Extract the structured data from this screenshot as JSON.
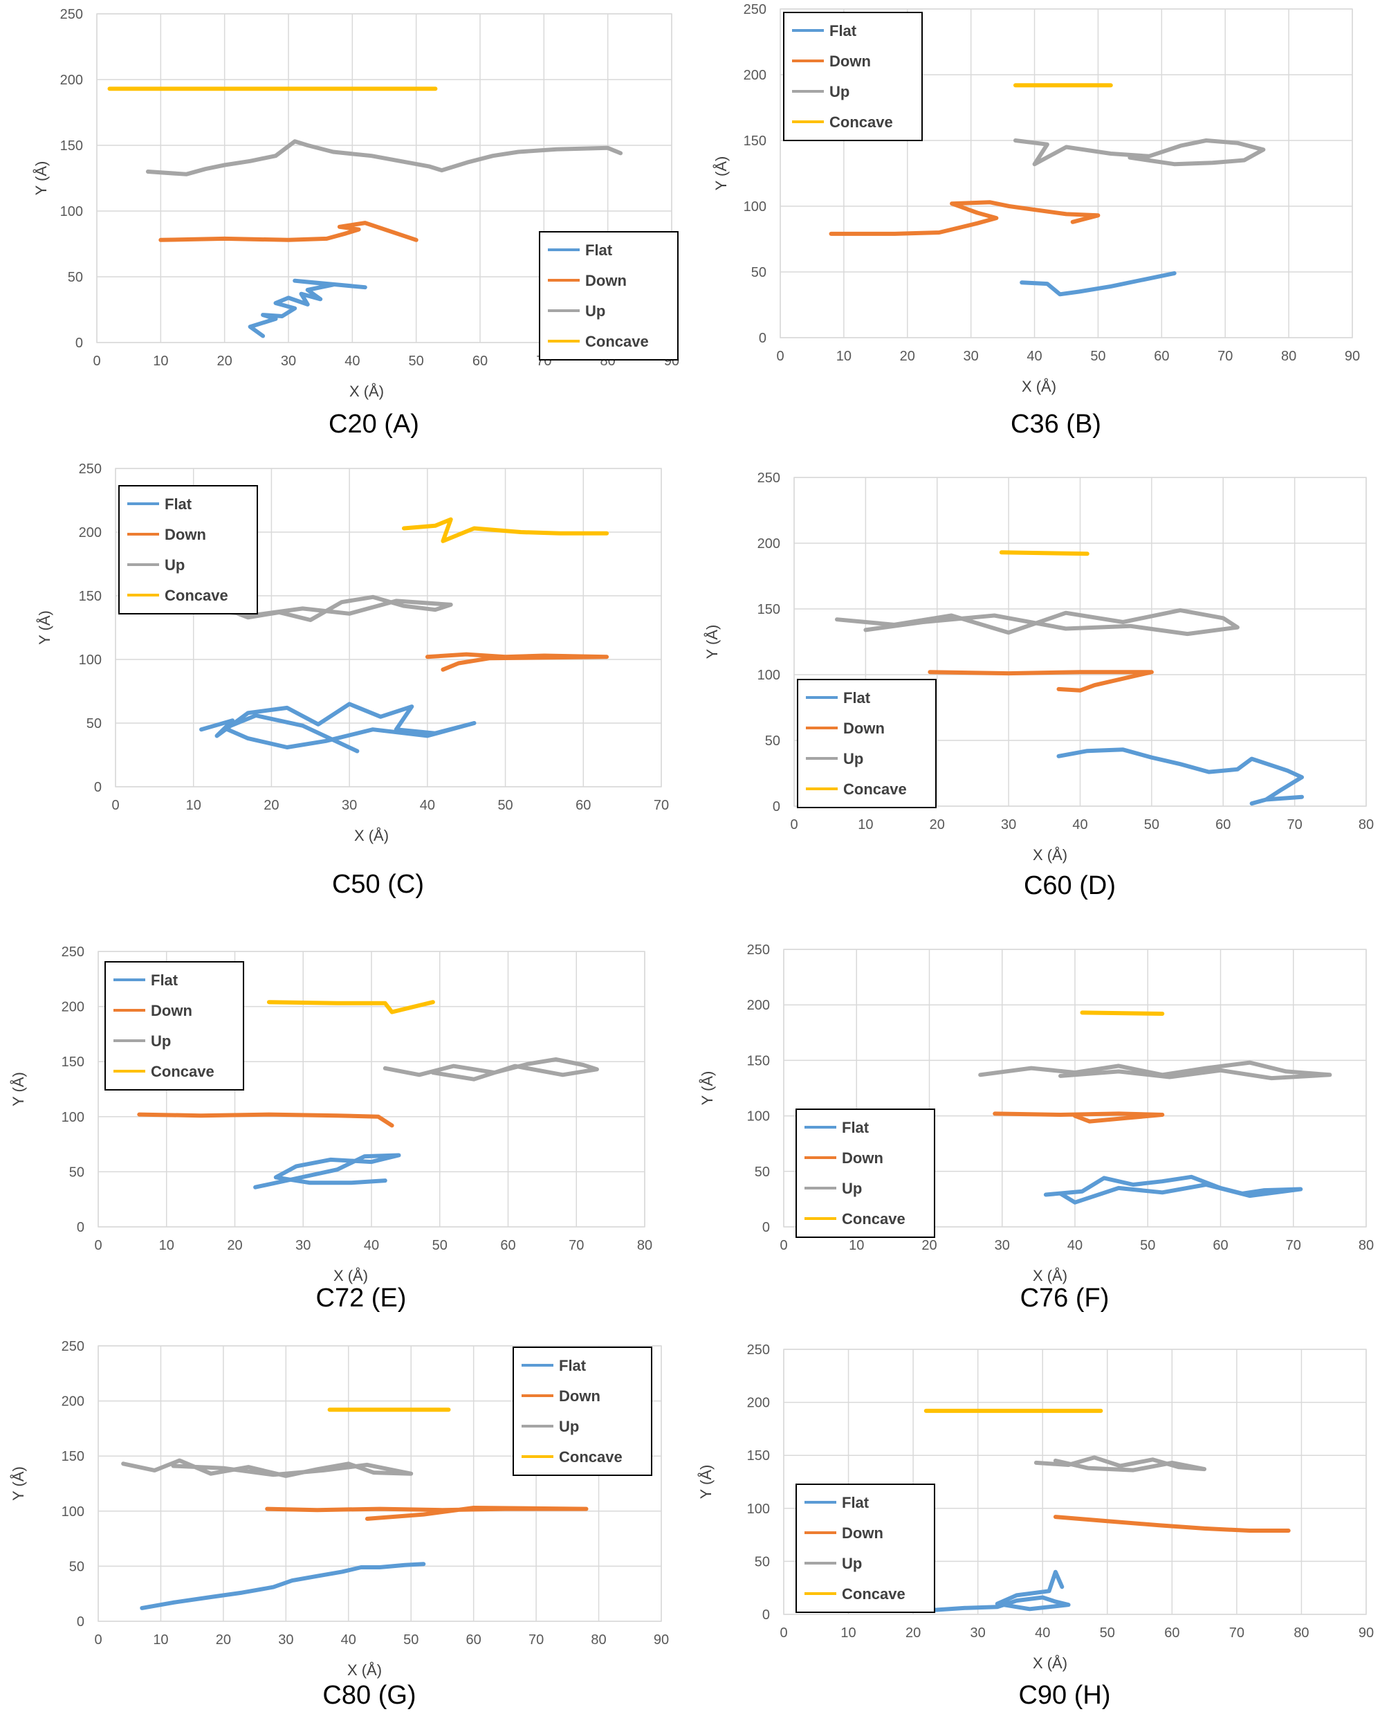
{
  "colors": {
    "Flat": "#5B9BD5",
    "Down": "#ED7D31",
    "Up": "#A5A5A5",
    "Concave": "#FFC000",
    "grid": "#d9d9d9",
    "tick": "#595959"
  },
  "chart_data": [
    {
      "type": "line",
      "caption": "C20 (A)",
      "xlabel": "X (Å)",
      "ylabel": "Y (Å)",
      "xlim": [
        0,
        90
      ],
      "ylim": [
        0,
        250
      ],
      "xticks": [
        0,
        10,
        20,
        30,
        40,
        50,
        60,
        70,
        80,
        90
      ],
      "yticks": [
        0,
        50,
        100,
        150,
        200,
        250
      ],
      "grid": true,
      "legend": "bottom-right",
      "series": [
        {
          "name": "Flat",
          "x": [
            26,
            24,
            28,
            26,
            29,
            31,
            28,
            30,
            33,
            32,
            35,
            33,
            37,
            31,
            42
          ],
          "y": [
            5,
            12,
            18,
            21,
            20,
            26,
            30,
            34,
            29,
            37,
            33,
            40,
            44,
            47,
            42
          ]
        },
        {
          "name": "Down",
          "x": [
            10,
            20,
            30,
            36,
            39,
            41,
            38,
            42,
            50
          ],
          "y": [
            78,
            79,
            78,
            79,
            83,
            86,
            88,
            91,
            78
          ]
        },
        {
          "name": "Up",
          "x": [
            8,
            14,
            17,
            20,
            24,
            28,
            31,
            33,
            37,
            43,
            52,
            54,
            58,
            62,
            66,
            72,
            80,
            82
          ],
          "y": [
            130,
            128,
            132,
            135,
            138,
            142,
            153,
            150,
            145,
            142,
            134,
            131,
            137,
            142,
            145,
            147,
            148,
            144
          ]
        },
        {
          "name": "Concave",
          "x": [
            2,
            53
          ],
          "y": [
            193,
            193
          ]
        }
      ]
    },
    {
      "type": "line",
      "caption": "C36 (B)",
      "xlabel": "X (Å)",
      "ylabel": "Y (Å)",
      "xlim": [
        0,
        90
      ],
      "ylim": [
        0,
        250
      ],
      "xticks": [
        0,
        10,
        20,
        30,
        40,
        50,
        60,
        70,
        80,
        90
      ],
      "yticks": [
        0,
        50,
        100,
        150,
        200,
        250
      ],
      "grid": true,
      "legend": "top-left",
      "series": [
        {
          "name": "Flat",
          "x": [
            38,
            42,
            44,
            47,
            52,
            57,
            62
          ],
          "y": [
            42,
            41,
            33,
            35,
            39,
            44,
            49
          ]
        },
        {
          "name": "Down",
          "x": [
            8,
            18,
            25,
            31,
            34,
            31,
            27,
            33,
            36,
            45,
            50,
            46
          ],
          "y": [
            79,
            79,
            80,
            87,
            91,
            95,
            102,
            103,
            100,
            94,
            93,
            88
          ]
        },
        {
          "name": "Up",
          "x": [
            37,
            42,
            40,
            45,
            52,
            58,
            63,
            67,
            72,
            76,
            73,
            68,
            62,
            55
          ],
          "y": [
            150,
            147,
            132,
            145,
            140,
            138,
            146,
            150,
            148,
            143,
            135,
            133,
            132,
            137
          ]
        },
        {
          "name": "Concave",
          "x": [
            37,
            52
          ],
          "y": [
            192,
            192
          ]
        }
      ]
    },
    {
      "type": "line",
      "caption": "C50 (C)",
      "xlabel": "X (Å)",
      "ylabel": "Y (Å)",
      "xlim": [
        0,
        70
      ],
      "ylim": [
        0,
        250
      ],
      "xticks": [
        0,
        10,
        20,
        30,
        40,
        50,
        60,
        70
      ],
      "yticks": [
        0,
        50,
        100,
        150,
        200,
        250
      ],
      "grid": true,
      "legend": "top-left",
      "series": [
        {
          "name": "Flat",
          "x": [
            11,
            15,
            13,
            17,
            22,
            26,
            30,
            34,
            38,
            36,
            41,
            46,
            40,
            33,
            27,
            22,
            17,
            14,
            18,
            24,
            31
          ],
          "y": [
            45,
            52,
            40,
            58,
            62,
            49,
            65,
            55,
            63,
            45,
            42,
            50,
            40,
            45,
            36,
            31,
            38,
            46,
            56,
            48,
            28
          ]
        },
        {
          "name": "Down",
          "x": [
            40,
            45,
            50,
            55,
            63,
            48,
            44,
            42
          ],
          "y": [
            102,
            104,
            102,
            103,
            102,
            101,
            97,
            92
          ]
        },
        {
          "name": "Up",
          "x": [
            10,
            14,
            17,
            21,
            25,
            29,
            33,
            37,
            41,
            43,
            36,
            30,
            24,
            18,
            13
          ],
          "y": [
            148,
            140,
            133,
            137,
            131,
            145,
            149,
            142,
            139,
            143,
            146,
            136,
            140,
            135,
            138
          ]
        },
        {
          "name": "Concave",
          "x": [
            37,
            41,
            43,
            42,
            46,
            52,
            57,
            63
          ],
          "y": [
            203,
            205,
            210,
            193,
            203,
            200,
            199,
            199
          ]
        }
      ]
    },
    {
      "type": "line",
      "caption": "C60 (D)",
      "xlabel": "X (Å)",
      "ylabel": "Y (Å)",
      "xlim": [
        0,
        80
      ],
      "ylim": [
        0,
        250
      ],
      "xticks": [
        0,
        10,
        20,
        30,
        40,
        50,
        60,
        70,
        80
      ],
      "yticks": [
        0,
        50,
        100,
        150,
        200,
        250
      ],
      "grid": true,
      "legend": "bottom-left",
      "series": [
        {
          "name": "Flat",
          "x": [
            37,
            41,
            46,
            50,
            54,
            58,
            62,
            64,
            69,
            71,
            68,
            66,
            64,
            66,
            71
          ],
          "y": [
            38,
            42,
            43,
            37,
            32,
            26,
            28,
            36,
            27,
            22,
            12,
            5,
            2,
            5,
            7
          ]
        },
        {
          "name": "Down",
          "x": [
            19,
            30,
            40,
            50,
            46,
            42,
            40,
            37
          ],
          "y": [
            102,
            101,
            102,
            102,
            97,
            92,
            88,
            89
          ]
        },
        {
          "name": "Up",
          "x": [
            6,
            14,
            22,
            30,
            38,
            46,
            54,
            60,
            62,
            55,
            47,
            38,
            28,
            18,
            10
          ],
          "y": [
            142,
            138,
            145,
            132,
            147,
            140,
            149,
            143,
            136,
            131,
            137,
            135,
            145,
            140,
            134
          ]
        },
        {
          "name": "Concave",
          "x": [
            29,
            41
          ],
          "y": [
            193,
            192
          ]
        }
      ]
    },
    {
      "type": "line",
      "caption": "C72 (E)",
      "xlabel": "X (Å)",
      "ylabel": "Y (Å)",
      "xlim": [
        0,
        80
      ],
      "ylim": [
        0,
        250
      ],
      "xticks": [
        0,
        10,
        20,
        30,
        40,
        50,
        60,
        70,
        80
      ],
      "yticks": [
        0,
        50,
        100,
        150,
        200,
        250
      ],
      "grid": true,
      "legend": "top-left",
      "series": [
        {
          "name": "Flat",
          "x": [
            23,
            29,
            35,
            39,
            44,
            40,
            34,
            29,
            26,
            31,
            37,
            42
          ],
          "y": [
            36,
            44,
            52,
            64,
            65,
            59,
            61,
            55,
            45,
            40,
            40,
            42
          ]
        },
        {
          "name": "Down",
          "x": [
            6,
            15,
            25,
            35,
            41,
            43
          ],
          "y": [
            102,
            101,
            102,
            101,
            100,
            92
          ]
        },
        {
          "name": "Up",
          "x": [
            42,
            47,
            52,
            58,
            63,
            67,
            71,
            73,
            68,
            61,
            55,
            49
          ],
          "y": [
            144,
            138,
            146,
            140,
            148,
            152,
            147,
            143,
            138,
            146,
            134,
            140
          ]
        },
        {
          "name": "Concave",
          "x": [
            25,
            35,
            42,
            43,
            49
          ],
          "y": [
            204,
            203,
            203,
            195,
            204
          ]
        }
      ]
    },
    {
      "type": "line",
      "caption": "C76  (F)",
      "xlabel": "X (Å)",
      "ylabel": "Y (Å)",
      "xlim": [
        0,
        80
      ],
      "ylim": [
        0,
        250
      ],
      "xticks": [
        0,
        10,
        20,
        30,
        40,
        50,
        60,
        70,
        80
      ],
      "yticks": [
        0,
        50,
        100,
        150,
        200,
        250
      ],
      "grid": true,
      "legend": "bottom-left",
      "series": [
        {
          "name": "Flat",
          "x": [
            36,
            41,
            44,
            48,
            52,
            56,
            60,
            63,
            66,
            71,
            64,
            58,
            52,
            46,
            40,
            38
          ],
          "y": [
            29,
            32,
            44,
            38,
            41,
            45,
            35,
            30,
            33,
            34,
            28,
            38,
            31,
            35,
            22,
            30
          ]
        },
        {
          "name": "Down",
          "x": [
            29,
            38,
            46,
            52,
            47,
            42,
            40
          ],
          "y": [
            102,
            101,
            102,
            101,
            98,
            95,
            100
          ]
        },
        {
          "name": "Up",
          "x": [
            27,
            34,
            40,
            46,
            52,
            58,
            64,
            69,
            75,
            67,
            60,
            53,
            46,
            38
          ],
          "y": [
            137,
            143,
            139,
            145,
            137,
            143,
            148,
            140,
            137,
            134,
            141,
            135,
            140,
            136
          ]
        },
        {
          "name": "Concave",
          "x": [
            41,
            52
          ],
          "y": [
            193,
            192
          ]
        }
      ]
    },
    {
      "type": "line",
      "caption": "C80 (G)",
      "xlabel": "X (Å)",
      "ylabel": "Y (Å)",
      "xlim": [
        0,
        90
      ],
      "ylim": [
        0,
        250
      ],
      "xticks": [
        0,
        10,
        20,
        30,
        40,
        50,
        60,
        70,
        80,
        90
      ],
      "yticks": [
        0,
        50,
        100,
        150,
        200,
        250
      ],
      "grid": true,
      "legend": "top-right",
      "series": [
        {
          "name": "Flat",
          "x": [
            7,
            12,
            18,
            23,
            28,
            31,
            35,
            39,
            42,
            45,
            49,
            52
          ],
          "y": [
            12,
            17,
            22,
            26,
            31,
            37,
            41,
            45,
            49,
            49,
            51,
            52
          ]
        },
        {
          "name": "Down",
          "x": [
            27,
            35,
            45,
            55,
            65,
            78,
            60,
            52,
            43
          ],
          "y": [
            102,
            101,
            102,
            101,
            102,
            102,
            103,
            97,
            93
          ]
        },
        {
          "name": "Up",
          "x": [
            4,
            9,
            13,
            18,
            24,
            30,
            35,
            40,
            44,
            50,
            43,
            36,
            28,
            20,
            12
          ],
          "y": [
            143,
            137,
            146,
            134,
            140,
            132,
            138,
            143,
            135,
            134,
            142,
            137,
            133,
            139,
            141
          ]
        },
        {
          "name": "Concave",
          "x": [
            37,
            56
          ],
          "y": [
            192,
            192
          ]
        }
      ]
    },
    {
      "type": "line",
      "caption": "C90 (H)",
      "xlabel": "X (Å)",
      "ylabel": "Y (Å)",
      "xlim": [
        0,
        90
      ],
      "ylim": [
        0,
        250
      ],
      "xticks": [
        0,
        10,
        20,
        30,
        40,
        50,
        60,
        70,
        80,
        90
      ],
      "yticks": [
        0,
        50,
        100,
        150,
        200,
        250
      ],
      "grid": true,
      "legend": "bottom-left",
      "series": [
        {
          "name": "Flat",
          "x": [
            23,
            28,
            33,
            36,
            40,
            42,
            44,
            38,
            33,
            36,
            41,
            42,
            43
          ],
          "y": [
            4,
            6,
            7,
            13,
            16,
            12,
            9,
            5,
            10,
            18,
            22,
            40,
            26
          ]
        },
        {
          "name": "Down",
          "x": [
            42,
            50,
            58,
            65,
            72,
            78
          ],
          "y": [
            92,
            88,
            84,
            81,
            79,
            79
          ]
        },
        {
          "name": "Up",
          "x": [
            39,
            44,
            48,
            52,
            57,
            61,
            65,
            60,
            54,
            47,
            42
          ],
          "y": [
            143,
            141,
            148,
            140,
            146,
            139,
            137,
            143,
            136,
            138,
            145
          ]
        },
        {
          "name": "Concave",
          "x": [
            22,
            49
          ],
          "y": [
            192,
            192
          ]
        }
      ]
    }
  ]
}
